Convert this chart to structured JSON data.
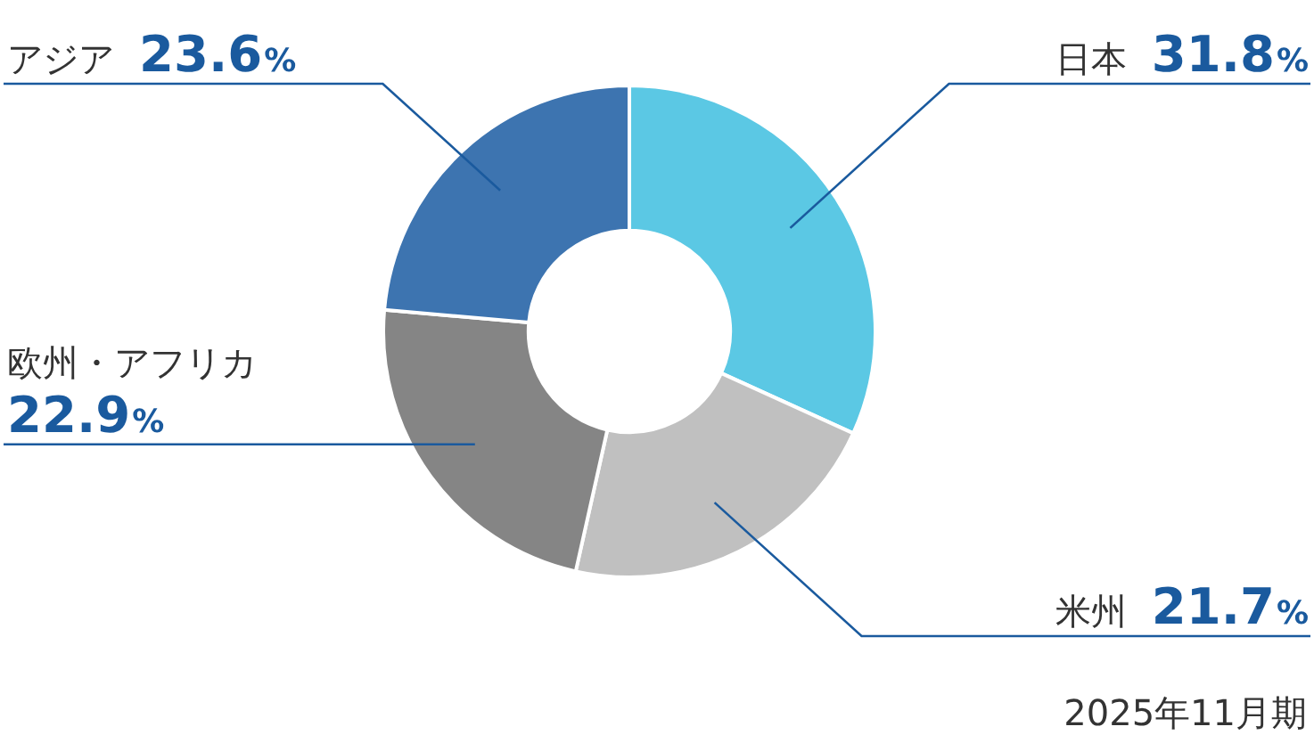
{
  "chart_data": {
    "type": "donut",
    "categories": [
      "日本",
      "米州",
      "欧州・アフリカ",
      "アジア"
    ],
    "values": [
      31.8,
      21.7,
      22.9,
      23.6
    ],
    "colors": [
      "#5bc8e4",
      "#c0c0c0",
      "#858585",
      "#3d74b0"
    ],
    "value_labels": [
      "31.8%",
      "21.7%",
      "22.9%",
      "23.6%"
    ],
    "legend": false,
    "annotations": [
      "2025年11月期"
    ]
  }
}
